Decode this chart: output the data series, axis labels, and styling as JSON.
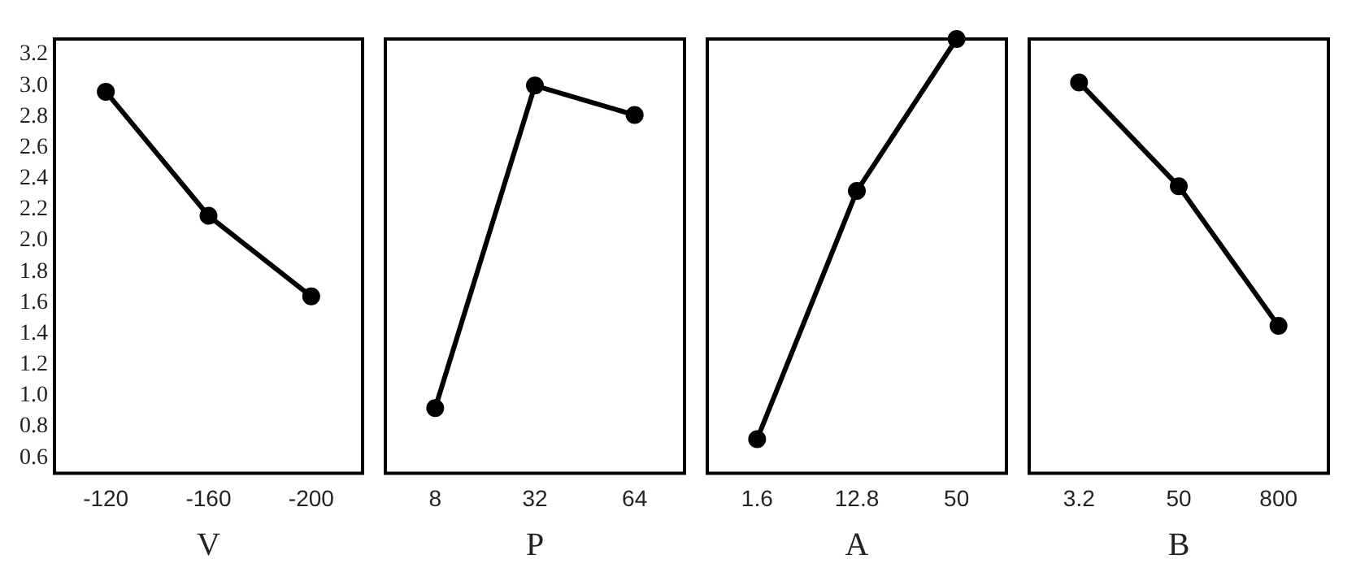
{
  "chart_data": [
    {
      "type": "line",
      "xlabel": "V",
      "categories": [
        "-120",
        "-160",
        "-200"
      ],
      "series": [
        {
          "color": "#000000",
          "values": [
            2.96,
            2.16,
            1.64
          ]
        }
      ],
      "ylim": [
        0.5,
        3.3
      ],
      "yticks": [
        0.6,
        0.8,
        {
          "value": 1,
          "label": "1.0"
        },
        1.2,
        1.4,
        1.6,
        1.8,
        {
          "value": 2,
          "label": "2.0"
        },
        2.2,
        2.4,
        2.6,
        2.8,
        {
          "value": 3,
          "label": "3.0"
        },
        3.2
      ],
      "marker": "circle",
      "line_style": "solid"
    },
    {
      "type": "line",
      "xlabel": "P",
      "categories": [
        "8",
        "32",
        "64"
      ],
      "series": [
        {
          "color": "#000000",
          "values": [
            0.92,
            3.0,
            2.81
          ]
        }
      ],
      "ylim": [
        0.5,
        3.3
      ],
      "tick_labels": "x",
      "marker": "circle",
      "line_style": "solid"
    },
    {
      "type": "line",
      "xlabel": "A",
      "categories": [
        "1.6",
        "12.8",
        "50"
      ],
      "series": [
        {
          "color": "#000000",
          "values": [
            0.72,
            2.32,
            3.3
          ]
        }
      ],
      "ylim": [
        0.5,
        3.3
      ],
      "tick_labels": "x",
      "marker": "circle",
      "line_style": "solid"
    },
    {
      "type": "line",
      "xlabel": "B",
      "categories": [
        "3.2",
        "50",
        "800"
      ],
      "series": [
        {
          "color": "#000000",
          "values": [
            3.02,
            2.35,
            1.45
          ]
        }
      ],
      "ylim": [
        0.5,
        3.3
      ],
      "tick_labels": "x",
      "marker": "circle",
      "line_style": "solid"
    }
  ]
}
